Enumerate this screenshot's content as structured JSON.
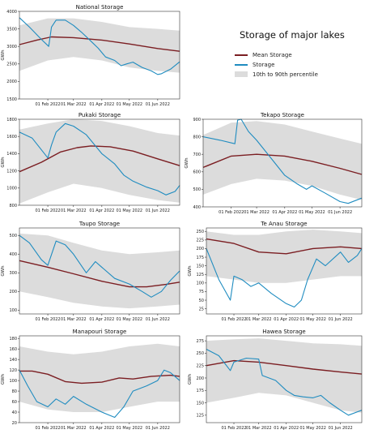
{
  "figure": {
    "title": "Storage of major lakes",
    "colors": {
      "mean": "#7b1e22",
      "storage": "#1f8cc0",
      "band": "#dcdcdc",
      "axis": "#333333"
    },
    "legend": [
      {
        "label": "Mean Storage",
        "kind": "line",
        "color": "#7b1e22"
      },
      {
        "label": "Storage",
        "kind": "line",
        "color": "#1f8cc0"
      },
      {
        "label": "10th to 90th percentile",
        "kind": "box",
        "color": "#dcdcdc"
      }
    ]
  },
  "chart_data": [
    {
      "type": "line",
      "title": "National Storage",
      "ylabel": "GWh",
      "xlim": [
        "2022-01-01",
        "2022-06-25"
      ],
      "ylim": [
        1500,
        4000
      ],
      "yticks": [
        1500,
        2000,
        2500,
        3000,
        3500,
        4000
      ],
      "xticks": [
        {
          "date": "2022-02-01",
          "label": "01 Feb 2022"
        },
        {
          "date": "2022-03-01",
          "label": "01 Mar 2022"
        },
        {
          "date": "2022-04-01",
          "label": "01 Apr 2022"
        },
        {
          "date": "2022-05-01",
          "label": "01 May 2022"
        },
        {
          "date": "2022-06-01",
          "label": "01 Jun 2022"
        }
      ],
      "series": [
        {
          "role": "mean",
          "x": [
            "2022-01-01",
            "2022-01-20",
            "2022-02-05",
            "2022-03-01",
            "2022-04-01",
            "2022-05-01",
            "2022-06-01",
            "2022-06-25"
          ],
          "y": [
            3050,
            3180,
            3270,
            3250,
            3180,
            3070,
            2940,
            2860
          ]
        },
        {
          "role": "storage",
          "x": [
            "2022-01-01",
            "2022-01-12",
            "2022-01-25",
            "2022-02-02",
            "2022-02-05",
            "2022-02-10",
            "2022-02-20",
            "2022-03-01",
            "2022-03-10",
            "2022-03-20",
            "2022-03-28",
            "2022-04-05",
            "2022-04-15",
            "2022-04-22",
            "2022-04-28",
            "2022-05-05",
            "2022-05-15",
            "2022-05-25",
            "2022-06-01",
            "2022-06-05",
            "2022-06-15",
            "2022-06-25"
          ],
          "y": [
            3820,
            3550,
            3200,
            3000,
            3550,
            3750,
            3750,
            3600,
            3400,
            3150,
            2950,
            2700,
            2600,
            2450,
            2500,
            2550,
            2400,
            2300,
            2200,
            2220,
            2350,
            2560
          ]
        }
      ],
      "band": {
        "x": [
          "2022-01-01",
          "2022-02-01",
          "2022-03-01",
          "2022-04-01",
          "2022-05-01",
          "2022-06-01",
          "2022-06-25"
        ],
        "low": [
          2300,
          2600,
          2700,
          2600,
          2400,
          2300,
          2250
        ],
        "high": [
          3600,
          3800,
          3800,
          3700,
          3550,
          3500,
          3450
        ]
      }
    },
    {
      "type": "line",
      "title": "Pukaki Storage",
      "ylabel": "GWh",
      "xlim": [
        "2022-01-01",
        "2022-06-25"
      ],
      "ylim": [
        800,
        1800
      ],
      "yticks": [
        800,
        1000,
        1200,
        1400,
        1600,
        1800
      ],
      "xticks": [
        {
          "date": "2022-02-01",
          "label": "01 Feb 2022"
        },
        {
          "date": "2022-03-01",
          "label": "01 Mar 2022"
        },
        {
          "date": "2022-04-01",
          "label": "01 Apr 2022"
        },
        {
          "date": "2022-05-01",
          "label": "01 May 2022"
        },
        {
          "date": "2022-06-01",
          "label": "01 Jun 2022"
        }
      ],
      "series": [
        {
          "role": "mean",
          "x": [
            "2022-01-01",
            "2022-01-25",
            "2022-02-15",
            "2022-03-05",
            "2022-03-20",
            "2022-04-10",
            "2022-05-05",
            "2022-06-01",
            "2022-06-25"
          ],
          "y": [
            1190,
            1300,
            1420,
            1470,
            1490,
            1480,
            1430,
            1340,
            1260
          ]
        },
        {
          "role": "storage",
          "x": [
            "2022-01-01",
            "2022-01-15",
            "2022-02-01",
            "2022-02-05",
            "2022-02-10",
            "2022-02-20",
            "2022-03-01",
            "2022-03-15",
            "2022-04-01",
            "2022-04-15",
            "2022-04-25",
            "2022-05-05",
            "2022-05-20",
            "2022-06-01",
            "2022-06-10",
            "2022-06-20",
            "2022-06-25"
          ],
          "y": [
            1650,
            1580,
            1350,
            1500,
            1650,
            1750,
            1720,
            1620,
            1400,
            1280,
            1150,
            1080,
            1010,
            970,
            920,
            960,
            1030
          ]
        }
      ],
      "band": {
        "x": [
          "2022-01-01",
          "2022-02-01",
          "2022-03-01",
          "2022-04-01",
          "2022-05-01",
          "2022-06-01",
          "2022-06-25"
        ],
        "low": [
          820,
          950,
          1050,
          1000,
          920,
          860,
          830
        ],
        "high": [
          1680,
          1750,
          1800,
          1780,
          1720,
          1640,
          1610
        ]
      }
    },
    {
      "type": "line",
      "title": "Tekapo Storage",
      "ylabel": "GWh",
      "xlim": [
        "2022-01-01",
        "2022-06-25"
      ],
      "ylim": [
        400,
        900
      ],
      "yticks": [
        400,
        500,
        600,
        700,
        800,
        900
      ],
      "xticks": [
        {
          "date": "2022-02-01",
          "label": "01 Feb 2022"
        },
        {
          "date": "2022-03-01",
          "label": "01 Mar 2022"
        },
        {
          "date": "2022-04-01",
          "label": "01 Apr 2022"
        },
        {
          "date": "2022-05-01",
          "label": "01 May 2022"
        },
        {
          "date": "2022-06-01",
          "label": "01 Jun 2022"
        }
      ],
      "series": [
        {
          "role": "mean",
          "x": [
            "2022-01-01",
            "2022-02-01",
            "2022-03-01",
            "2022-04-01",
            "2022-05-01",
            "2022-06-01",
            "2022-06-25"
          ],
          "y": [
            625,
            690,
            700,
            690,
            660,
            620,
            585
          ]
        },
        {
          "role": "storage",
          "x": [
            "2022-01-01",
            "2022-01-20",
            "2022-02-05",
            "2022-02-08",
            "2022-02-12",
            "2022-02-20",
            "2022-03-01",
            "2022-03-15",
            "2022-04-01",
            "2022-04-15",
            "2022-04-25",
            "2022-05-01",
            "2022-05-15",
            "2022-06-01",
            "2022-06-10",
            "2022-06-25"
          ],
          "y": [
            800,
            780,
            760,
            895,
            900,
            830,
            780,
            690,
            580,
            530,
            500,
            520,
            480,
            430,
            420,
            450
          ]
        }
      ],
      "band": {
        "x": [
          "2022-01-01",
          "2022-02-01",
          "2022-03-01",
          "2022-04-01",
          "2022-05-01",
          "2022-06-01",
          "2022-06-25"
        ],
        "low": [
          470,
          530,
          560,
          550,
          520,
          470,
          440
        ],
        "high": [
          810,
          880,
          890,
          870,
          830,
          790,
          760
        ]
      }
    },
    {
      "type": "line",
      "title": "Taupo Storage",
      "ylabel": "GWh",
      "xlim": [
        "2022-01-01",
        "2022-06-25"
      ],
      "ylim": [
        80,
        540
      ],
      "yticks": [
        100,
        200,
        300,
        400,
        500
      ],
      "xticks": [
        {
          "date": "2022-02-01",
          "label": "01 Feb 2022"
        },
        {
          "date": "2022-03-01",
          "label": "01 Mar 2022"
        },
        {
          "date": "2022-04-01",
          "label": "01 Apr 2022"
        },
        {
          "date": "2022-05-01",
          "label": "01 May 2022"
        },
        {
          "date": "2022-06-01",
          "label": "01 Jun 2022"
        }
      ],
      "series": [
        {
          "role": "mean",
          "x": [
            "2022-01-01",
            "2022-02-01",
            "2022-03-01",
            "2022-04-01",
            "2022-05-01",
            "2022-05-20",
            "2022-06-10",
            "2022-06-25"
          ],
          "y": [
            365,
            330,
            295,
            255,
            225,
            225,
            238,
            250
          ]
        },
        {
          "role": "storage",
          "x": [
            "2022-01-01",
            "2022-01-12",
            "2022-01-25",
            "2022-02-01",
            "2022-02-10",
            "2022-02-20",
            "2022-03-01",
            "2022-03-15",
            "2022-03-25",
            "2022-04-01",
            "2022-04-15",
            "2022-05-01",
            "2022-05-15",
            "2022-05-25",
            "2022-06-05",
            "2022-06-15",
            "2022-06-25"
          ],
          "y": [
            500,
            460,
            370,
            340,
            470,
            450,
            400,
            300,
            360,
            330,
            270,
            240,
            200,
            170,
            200,
            260,
            310
          ]
        }
      ],
      "band": {
        "x": [
          "2022-01-01",
          "2022-02-01",
          "2022-03-01",
          "2022-04-01",
          "2022-05-01",
          "2022-06-01",
          "2022-06-25"
        ],
        "low": [
          200,
          170,
          140,
          120,
          110,
          120,
          130
        ],
        "high": [
          510,
          500,
          460,
          420,
          400,
          410,
          420
        ]
      }
    },
    {
      "type": "line",
      "title": "Te Anau Storage",
      "ylabel": "GWh",
      "xlim": [
        "2022-01-01",
        "2022-06-25"
      ],
      "ylim": [
        10,
        260
      ],
      "yticks": [
        25,
        50,
        75,
        100,
        125,
        150,
        175,
        200,
        225,
        250
      ],
      "xticks": [
        {
          "date": "2022-02-01",
          "label": "01 Feb 2022"
        },
        {
          "date": "2022-03-01",
          "label": "01 Mar 2022"
        },
        {
          "date": "2022-04-01",
          "label": "01 Apr 2022"
        },
        {
          "date": "2022-05-01",
          "label": "01 May 2022"
        },
        {
          "date": "2022-06-01",
          "label": "01 Jun 2022"
        }
      ],
      "series": [
        {
          "role": "mean",
          "x": [
            "2022-01-01",
            "2022-02-01",
            "2022-03-01",
            "2022-04-01",
            "2022-05-01",
            "2022-06-01",
            "2022-06-25"
          ],
          "y": [
            228,
            215,
            190,
            185,
            200,
            205,
            200
          ]
        },
        {
          "role": "storage",
          "x": [
            "2022-01-01",
            "2022-01-15",
            "2022-01-28",
            "2022-02-01",
            "2022-02-10",
            "2022-02-20",
            "2022-03-01",
            "2022-03-15",
            "2022-04-01",
            "2022-04-10",
            "2022-04-18",
            "2022-04-25",
            "2022-05-05",
            "2022-05-15",
            "2022-06-01",
            "2022-06-10",
            "2022-06-20",
            "2022-06-25"
          ],
          "y": [
            200,
            110,
            50,
            120,
            110,
            90,
            100,
            70,
            40,
            30,
            50,
            110,
            170,
            150,
            190,
            160,
            180,
            200
          ]
        }
      ],
      "band": {
        "x": [
          "2022-01-01",
          "2022-02-01",
          "2022-03-01",
          "2022-04-01",
          "2022-05-01",
          "2022-06-01",
          "2022-06-25"
        ],
        "low": [
          120,
          110,
          100,
          100,
          110,
          120,
          120
        ],
        "high": [
          250,
          240,
          240,
          250,
          255,
          250,
          245
        ]
      }
    },
    {
      "type": "line",
      "title": "Manapouri Storage",
      "ylabel": "GWh",
      "xlim": [
        "2022-01-01",
        "2022-06-25"
      ],
      "ylim": [
        20,
        185
      ],
      "yticks": [
        20,
        40,
        60,
        80,
        100,
        120,
        140,
        160,
        180
      ],
      "xticks": [
        {
          "date": "2022-02-01",
          "label": "01 Feb 2022"
        },
        {
          "date": "2022-03-01",
          "label": "01 Mar 2022"
        },
        {
          "date": "2022-04-01",
          "label": "01 Apr 2022"
        },
        {
          "date": "2022-05-01",
          "label": "01 May 2022"
        },
        {
          "date": "2022-06-01",
          "label": "01 Jun 2022"
        }
      ],
      "series": [
        {
          "role": "mean",
          "x": [
            "2022-01-01",
            "2022-01-15",
            "2022-02-01",
            "2022-02-20",
            "2022-03-10",
            "2022-04-01",
            "2022-04-20",
            "2022-05-05",
            "2022-05-25",
            "2022-06-15",
            "2022-06-25"
          ],
          "y": [
            118,
            118,
            112,
            98,
            95,
            97,
            105,
            103,
            108,
            110,
            108
          ]
        },
        {
          "role": "storage",
          "x": [
            "2022-01-01",
            "2022-01-10",
            "2022-01-20",
            "2022-02-01",
            "2022-02-10",
            "2022-02-20",
            "2022-03-01",
            "2022-03-15",
            "2022-04-01",
            "2022-04-15",
            "2022-04-25",
            "2022-05-05",
            "2022-05-20",
            "2022-06-01",
            "2022-06-08",
            "2022-06-15",
            "2022-06-25"
          ],
          "y": [
            120,
            90,
            60,
            50,
            65,
            55,
            70,
            55,
            40,
            30,
            50,
            80,
            90,
            100,
            120,
            115,
            100
          ]
        }
      ],
      "band": {
        "x": [
          "2022-01-01",
          "2022-02-01",
          "2022-03-01",
          "2022-04-01",
          "2022-05-01",
          "2022-06-01",
          "2022-06-25"
        ],
        "low": [
          60,
          45,
          40,
          40,
          50,
          60,
          60
        ],
        "high": [
          165,
          155,
          150,
          155,
          165,
          170,
          165
        ]
      }
    },
    {
      "type": "line",
      "title": "Hawea Storage",
      "ylabel": "GWh",
      "xlim": [
        "2022-01-01",
        "2022-06-25"
      ],
      "ylim": [
        110,
        285
      ],
      "yticks": [
        125,
        150,
        175,
        200,
        225,
        250,
        275
      ],
      "xticks": [
        {
          "date": "2022-02-01",
          "label": "01 Feb 2022"
        },
        {
          "date": "2022-03-01",
          "label": "01 Mar 2022"
        },
        {
          "date": "2022-04-01",
          "label": "01 Apr 2022"
        },
        {
          "date": "2022-05-01",
          "label": "01 May 2022"
        },
        {
          "date": "2022-06-01",
          "label": "01 Jun 2022"
        }
      ],
      "series": [
        {
          "role": "mean",
          "x": [
            "2022-01-01",
            "2022-02-01",
            "2022-03-01",
            "2022-04-01",
            "2022-05-01",
            "2022-06-01",
            "2022-06-25"
          ],
          "y": [
            225,
            235,
            232,
            225,
            218,
            212,
            208
          ]
        },
        {
          "role": "storage",
          "x": [
            "2022-01-01",
            "2022-01-15",
            "2022-01-28",
            "2022-02-01",
            "2022-02-15",
            "2022-03-01",
            "2022-03-05",
            "2022-03-20",
            "2022-04-01",
            "2022-04-10",
            "2022-04-20",
            "2022-05-01",
            "2022-05-10",
            "2022-05-20",
            "2022-06-01",
            "2022-06-10",
            "2022-06-25"
          ],
          "y": [
            258,
            245,
            215,
            232,
            240,
            238,
            205,
            195,
            175,
            165,
            162,
            160,
            165,
            150,
            135,
            125,
            135
          ]
        }
      ],
      "band": {
        "x": [
          "2022-01-01",
          "2022-02-01",
          "2022-03-01",
          "2022-04-01",
          "2022-05-01",
          "2022-06-01",
          "2022-06-25"
        ],
        "low": [
          150,
          160,
          170,
          165,
          150,
          135,
          130
        ],
        "high": [
          275,
          278,
          280,
          275,
          270,
          268,
          265
        ]
      }
    }
  ]
}
